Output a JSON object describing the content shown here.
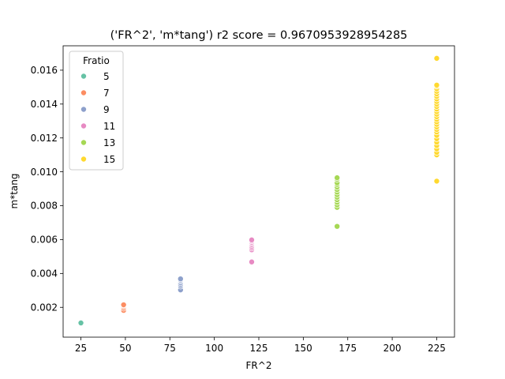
{
  "chart_data": {
    "type": "scatter",
    "title": "('FR^2', 'm*tang') r2 score = 0.9670953928954285",
    "xlabel": "FR^2",
    "ylabel": "m*tang",
    "xlim": [
      15,
      235
    ],
    "ylim": [
      0.00024,
      0.01744
    ],
    "xticks": [
      25,
      50,
      75,
      100,
      125,
      150,
      175,
      200,
      225
    ],
    "xtick_labels": [
      "25",
      "50",
      "75",
      "100",
      "125",
      "150",
      "175",
      "200",
      "225"
    ],
    "yticks": [
      0.002,
      0.004,
      0.006,
      0.008,
      0.01,
      0.012,
      0.014,
      0.016
    ],
    "ytick_labels": [
      "0.002",
      "0.004",
      "0.006",
      "0.008",
      "0.010",
      "0.012",
      "0.014",
      "0.016"
    ],
    "grid": false,
    "legend": {
      "title": "Fratio",
      "position": "top-left"
    },
    "series": [
      {
        "name": "5",
        "color": "#66c2a5",
        "x": [
          25,
          25
        ],
        "y": [
          0.00105,
          0.00108
        ]
      },
      {
        "name": "7",
        "color": "#fc8d62",
        "x": [
          49,
          49,
          49,
          49,
          49
        ],
        "y": [
          0.00182,
          0.00195,
          0.00205,
          0.00212,
          0.00215
        ]
      },
      {
        "name": "9",
        "color": "#8da0cb",
        "x": [
          81,
          81,
          81,
          81,
          81,
          81,
          81
        ],
        "y": [
          0.00303,
          0.00325,
          0.00335,
          0.00345,
          0.00355,
          0.00362,
          0.00368
        ]
      },
      {
        "name": "11",
        "color": "#e78ac3",
        "x": [
          121,
          121,
          121,
          121,
          121,
          121,
          121,
          121,
          121
        ],
        "y": [
          0.00468,
          0.0054,
          0.0055,
          0.0056,
          0.0057,
          0.00578,
          0.00585,
          0.00592,
          0.00598
        ]
      },
      {
        "name": "13",
        "color": "#a6d854",
        "x": [
          169,
          169,
          169,
          169,
          169,
          169,
          169,
          169,
          169,
          169,
          169,
          169,
          169,
          169
        ],
        "y": [
          0.00678,
          0.0079,
          0.00805,
          0.0082,
          0.00835,
          0.0085,
          0.00865,
          0.0088,
          0.00895,
          0.0091,
          0.00925,
          0.00935,
          0.00955,
          0.00965
        ]
      },
      {
        "name": "15",
        "color": "#ffd92f",
        "x": [
          225,
          225,
          225,
          225,
          225,
          225,
          225,
          225,
          225,
          225,
          225,
          225,
          225,
          225,
          225,
          225,
          225,
          225,
          225,
          225,
          225,
          225,
          225,
          225,
          225,
          225,
          225,
          225,
          225
        ],
        "y": [
          0.00945,
          0.011,
          0.01115,
          0.01135,
          0.01155,
          0.01175,
          0.01195,
          0.01215,
          0.01235,
          0.0125,
          0.01265,
          0.0128,
          0.01295,
          0.0131,
          0.01325,
          0.0134,
          0.01355,
          0.0137,
          0.01385,
          0.014,
          0.01415,
          0.0143,
          0.01445,
          0.0146,
          0.01475,
          0.0149,
          0.01505,
          0.01512,
          0.0167
        ]
      }
    ]
  }
}
